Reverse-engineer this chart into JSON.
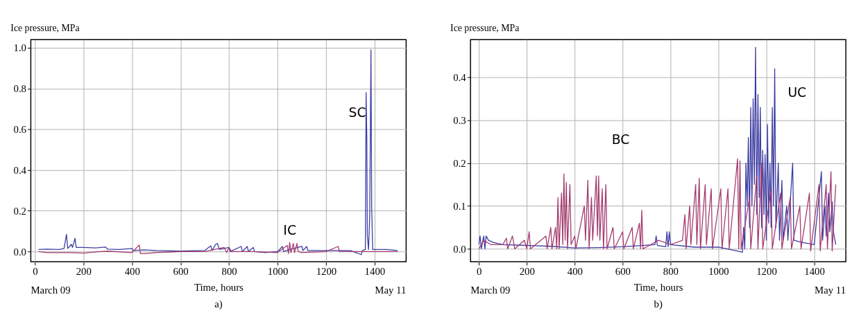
{
  "chart_data": [
    {
      "type": "line",
      "ylabel": "Ice pressure, MPa",
      "xlabel": "Time, hours",
      "xlim": [
        -17,
        1530
      ],
      "ylim": [
        -0.05,
        1.04
      ],
      "xticks": [
        0,
        200,
        400,
        600,
        800,
        1000,
        1200,
        1400
      ],
      "yticks": [
        {
          "value": 0,
          "label": "0.0"
        },
        {
          "value": 0.2,
          "label": "0.2"
        },
        {
          "value": 0.4,
          "label": "0.4"
        },
        {
          "value": 0.6,
          "label": "0.6"
        },
        {
          "value": 0.8,
          "label": "0.8"
        },
        {
          "value": 1.0,
          "label": "1.0"
        }
      ],
      "grid": true,
      "annotations": [
        "March 09",
        "May 11",
        "a)",
        "SC",
        "IC"
      ],
      "series": [
        {
          "color": "#3b3ba3",
          "x": [
            15,
            50,
            100,
            120,
            130,
            135,
            150,
            155,
            165,
            170,
            200,
            250,
            290,
            300,
            350,
            400,
            405,
            450,
            500,
            600,
            700,
            725,
            730,
            745,
            752,
            760,
            800,
            805,
            850,
            855,
            875,
            880,
            900,
            905,
            950,
            1000,
            1020,
            1025,
            1050,
            1100,
            1105,
            1120,
            1125,
            1200,
            1300,
            1345,
            1350,
            1362,
            1365,
            1368,
            1370,
            1375,
            1380,
            1385,
            1388,
            1392,
            1400,
            1450,
            1495
          ],
          "values": [
            0.01,
            0.012,
            0.01,
            0.015,
            0.085,
            0.015,
            0.035,
            0.02,
            0.065,
            0.02,
            0.02,
            0.018,
            0.022,
            0.012,
            0.01,
            0.015,
            0.005,
            0.008,
            0.005,
            0.002,
            0.005,
            0.028,
            0.005,
            0.035,
            0.04,
            0.01,
            0.02,
            0.0,
            0.025,
            0.0,
            0.025,
            0.0,
            0.02,
            0.0,
            -0.005,
            0.0,
            0.025,
            0.0,
            0.01,
            0.025,
            0.005,
            0.025,
            0.005,
            0.005,
            0.005,
            -0.015,
            0.005,
            0.01,
            0.78,
            0.55,
            0.08,
            0.01,
            0.18,
            0.99,
            0.22,
            0.01,
            0.01,
            0.01,
            0.005
          ]
        },
        {
          "color": "#a33a6e",
          "x": [
            15,
            50,
            100,
            150,
            200,
            250,
            300,
            400,
            430,
            435,
            450,
            500,
            600,
            700,
            780,
            790,
            800,
            810,
            900,
            1000,
            1040,
            1045,
            1050,
            1055,
            1065,
            1070,
            1080,
            1085,
            1100,
            1200,
            1250,
            1255,
            1300,
            1400,
            1495
          ],
          "values": [
            0.0,
            -0.005,
            -0.005,
            -0.005,
            -0.008,
            -0.002,
            0.002,
            -0.005,
            0.032,
            -0.01,
            -0.01,
            -0.005,
            0.0,
            0.0,
            0.02,
            -0.005,
            0.02,
            0.0,
            0.0,
            -0.005,
            0.03,
            -0.01,
            0.045,
            -0.005,
            0.04,
            -0.005,
            0.04,
            0.0,
            -0.005,
            0.0,
            0.025,
            0.0,
            0.0,
            0.0,
            0.0
          ]
        }
      ]
    },
    {
      "type": "line",
      "ylabel": "Ice pressure, MPa",
      "xlabel": "Time, hours",
      "xlim": [
        -35,
        1532
      ],
      "ylim": [
        -0.03,
        0.488
      ],
      "xticks": [
        0,
        200,
        400,
        600,
        800,
        1000,
        1200,
        1400
      ],
      "yticks": [
        {
          "value": 0,
          "label": "0.0"
        },
        {
          "value": 0.1,
          "label": "0.1"
        },
        {
          "value": 0.2,
          "label": "0.2"
        },
        {
          "value": 0.3,
          "label": "0.3"
        },
        {
          "value": 0.4,
          "label": "0.4"
        }
      ],
      "grid": true,
      "annotations": [
        "March 09",
        "May 11",
        "b)",
        "BC",
        "UC"
      ],
      "series": [
        {
          "color": "#3b3ba3",
          "x": [
            0,
            5,
            10,
            20,
            25,
            30,
            40,
            60,
            100,
            200,
            300,
            400,
            500,
            600,
            735,
            740,
            745,
            780,
            785,
            790,
            795,
            800,
            900,
            1000,
            1080,
            1100,
            1105,
            1110,
            1115,
            1120,
            1125,
            1130,
            1135,
            1140,
            1145,
            1150,
            1155,
            1160,
            1165,
            1170,
            1175,
            1180,
            1185,
            1190,
            1195,
            1200,
            1205,
            1210,
            1215,
            1220,
            1225,
            1230,
            1235,
            1240,
            1250,
            1255,
            1265,
            1270,
            1285,
            1290,
            1310,
            1315,
            1350,
            1400,
            1430,
            1435,
            1445,
            1450,
            1460,
            1465,
            1475,
            1480,
            1490
          ],
          "values": [
            0.01,
            0.03,
            0.0,
            0.03,
            0.0,
            0.03,
            0.02,
            0.015,
            0.01,
            0.008,
            0.006,
            0.002,
            0.003,
            0.005,
            0.01,
            0.03,
            0.008,
            0.005,
            0.04,
            0.005,
            0.04,
            0.01,
            0.004,
            0.004,
            -0.005,
            -0.008,
            0.05,
            0.0,
            0.2,
            0.1,
            0.26,
            0.05,
            0.33,
            0.1,
            0.35,
            0.15,
            0.47,
            0.08,
            0.36,
            0.12,
            0.33,
            0.05,
            0.23,
            0.08,
            0.22,
            0.02,
            0.29,
            0.06,
            0.2,
            0.05,
            0.33,
            0.1,
            0.42,
            0.05,
            0.2,
            0.02,
            0.16,
            0.02,
            0.1,
            0.02,
            0.2,
            0.02,
            0.015,
            0.01,
            0.18,
            0.02,
            0.1,
            0.03,
            0.13,
            0.04,
            0.11,
            0.04,
            0.01
          ]
        },
        {
          "color": "#a33a6e",
          "x": [
            0,
            20,
            50,
            100,
            115,
            120,
            140,
            150,
            190,
            200,
            210,
            215,
            280,
            285,
            300,
            305,
            320,
            325,
            330,
            335,
            345,
            350,
            355,
            360,
            365,
            370,
            380,
            385,
            400,
            405,
            440,
            445,
            455,
            460,
            470,
            475,
            490,
            495,
            500,
            505,
            515,
            520,
            530,
            535,
            560,
            565,
            600,
            605,
            640,
            645,
            670,
            675,
            680,
            685,
            750,
            800,
            850,
            860,
            865,
            880,
            885,
            905,
            910,
            920,
            925,
            945,
            950,
            970,
            975,
            1010,
            1015,
            1040,
            1045,
            1080,
            1085,
            1090,
            1095,
            1130,
            1135,
            1160,
            1165,
            1180,
            1185,
            1220,
            1225,
            1260,
            1265,
            1300,
            1305,
            1340,
            1345,
            1380,
            1385,
            1420,
            1425,
            1450,
            1455,
            1470,
            1475,
            1490
          ],
          "values": [
            0.0,
            0.02,
            0.01,
            0.01,
            0.025,
            0.0,
            0.03,
            0.0,
            0.02,
            0.0,
            0.04,
            0.0,
            0.03,
            0.0,
            0.05,
            0.0,
            0.05,
            0.0,
            0.12,
            0.0,
            0.13,
            0.01,
            0.175,
            0.02,
            0.155,
            0.0,
            0.15,
            0.01,
            0.03,
            0.0,
            0.1,
            0.02,
            0.16,
            0.0,
            0.12,
            0.02,
            0.17,
            0.03,
            0.17,
            0.02,
            0.14,
            0.0,
            0.15,
            0.0,
            0.05,
            0.0,
            0.04,
            0.0,
            0.05,
            0.0,
            0.06,
            0.0,
            0.09,
            0.0,
            0.02,
            0.01,
            0.02,
            0.08,
            0.0,
            0.1,
            0.01,
            0.15,
            0.01,
            0.165,
            0.0,
            0.15,
            0.01,
            0.14,
            0.0,
            0.14,
            0.0,
            0.14,
            0.0,
            0.21,
            0.0,
            0.205,
            0.0,
            0.12,
            0.0,
            0.17,
            0.0,
            0.2,
            0.0,
            0.14,
            0.0,
            0.13,
            0.0,
            0.12,
            0.0,
            0.1,
            0.0,
            0.13,
            -0.005,
            0.15,
            -0.005,
            0.15,
            0.0,
            0.18,
            -0.005,
            0.15
          ]
        }
      ]
    }
  ]
}
